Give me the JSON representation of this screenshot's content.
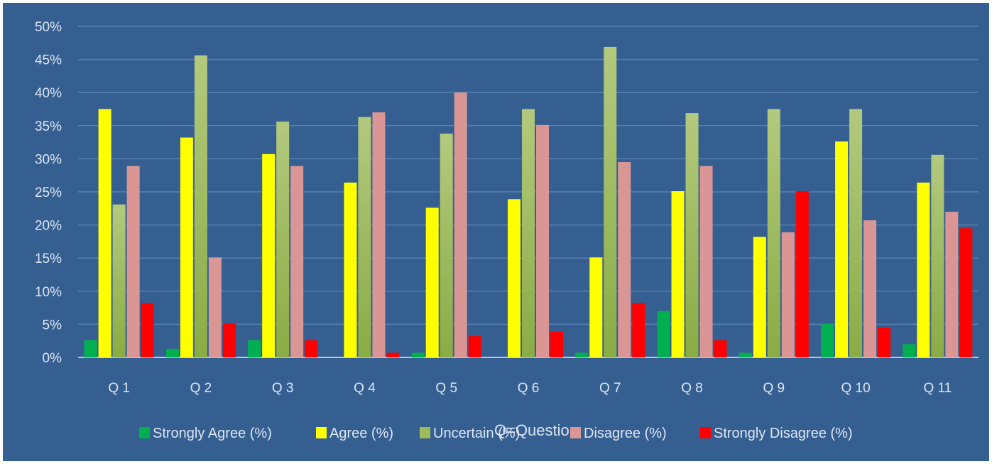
{
  "chart_data": {
    "type": "bar",
    "title": "",
    "xlabel": "Q=Question",
    "ylabel": "",
    "ylim": [
      0,
      50
    ],
    "yticks": [
      "0%",
      "5%",
      "10%",
      "15%",
      "20%",
      "25%",
      "30%",
      "35%",
      "40%",
      "45%",
      "50%"
    ],
    "grid": true,
    "legend_position": "bottom",
    "categories": [
      "Q 1",
      "Q 2",
      "Q 3",
      "Q 4",
      "Q 5",
      "Q 6",
      "Q 7",
      "Q 8",
      "Q 9",
      "Q 10",
      "Q 11"
    ],
    "series": [
      {
        "name": "Strongly Agree (%)",
        "color": "#00b050",
        "values": [
          2.6,
          1.3,
          2.6,
          0,
          0.7,
          0,
          0.7,
          7.0,
          0.7,
          5.1,
          2.0
        ]
      },
      {
        "name": "Agree  (%)",
        "color": "#ffff00",
        "values": [
          37.5,
          33.2,
          30.7,
          26.4,
          22.6,
          23.9,
          15.1,
          25.1,
          18.2,
          32.6,
          26.4
        ]
      },
      {
        "name": "Uncertain (%)",
        "color": "#9bbb59",
        "values": [
          23.1,
          45.6,
          35.6,
          36.3,
          33.8,
          37.5,
          46.9,
          36.9,
          37.5,
          37.5,
          30.6
        ]
      },
      {
        "name": "Disagree (%)",
        "color": "#d99694",
        "values": [
          28.9,
          15.1,
          28.9,
          37.0,
          40.0,
          35.1,
          29.5,
          28.9,
          18.9,
          20.7,
          22.0
        ]
      },
      {
        "name": "Strongly Disagree  (%)",
        "color": "#ff0000",
        "values": [
          8.2,
          5.1,
          2.6,
          0.7,
          3.2,
          3.9,
          8.2,
          2.6,
          25.1,
          4.5,
          19.5
        ]
      }
    ]
  }
}
